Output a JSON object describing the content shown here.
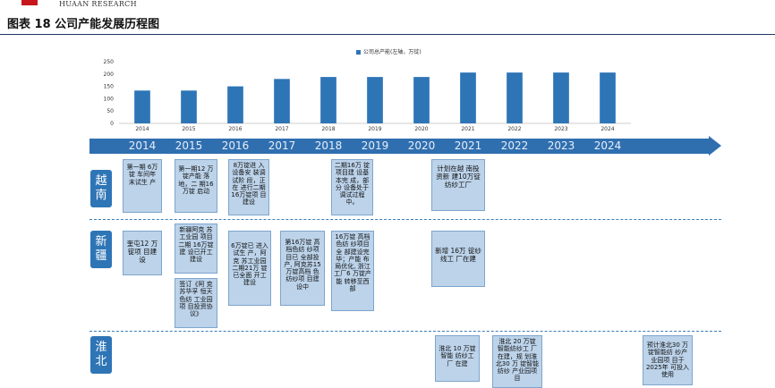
{
  "header": {
    "brand": "HUAAN RESEARCH",
    "figure_title": "图表 18 公司产能发展历程图"
  },
  "chart_data": {
    "type": "bar",
    "categories": [
      "2014",
      "2015",
      "2016",
      "2017",
      "2018",
      "2019",
      "2020",
      "2021",
      "2022",
      "2023",
      "2024"
    ],
    "series": [
      {
        "name": "公司总产能(左轴，万锭)",
        "values": [
          133,
          133,
          150,
          180,
          188,
          188,
          188,
          206,
          206,
          206,
          206
        ]
      }
    ],
    "ylim": [
      0,
      250
    ],
    "yticks": [
      "0",
      "50",
      "100",
      "150",
      "200",
      "250"
    ],
    "bar_color": "#2e75b6",
    "legend_position": "top-center",
    "title": "",
    "xlabel": "",
    "ylabel": ""
  },
  "timeline": {
    "years": [
      "2014",
      "2015",
      "2016",
      "2017",
      "2018",
      "2019",
      "2020",
      "2021",
      "2022",
      "2023",
      "2024"
    ],
    "color": "#2f6fb0"
  },
  "regions": [
    {
      "label": "越南"
    },
    {
      "label": "新疆"
    },
    {
      "label": "淮北"
    }
  ],
  "events": {
    "vn_2014": "第一期 6万锭 车间年 末试生 产",
    "vn_2015": "第一期12 万锭产能 落地，二 期16万锭 启动",
    "vn_2016": "8万锭进 入设备安 装调试阶 段，正在 进行二期 16万锭项 目建设",
    "vn_2018": "二期16万 锭项目建 设基本完 成，部分 设备处于 调试过程 中。",
    "vn_2020": "计划在越 南投资新 建10万锭 纺纱工厂",
    "xj_2014": "奎屯12 万锭项 目建设",
    "xj_2015a": "新疆阿克 苏工业园 项目二期 16万锭建 设已开工 建设",
    "xj_2015b": "签订《阿 克苏华孚 恒天色纺 工业园项 目投资协 议》",
    "xj_2016": "6万锭已 进入试生 产，阿克 苏工业园 二期21万 锭已全面 开工建设",
    "xj_2017": "第16万锭 高档色纺 纱项目已 全部投产, 阿克苏15 万锭高档 色纺纱项 目建设中",
    "xj_2018": "16万锭 高档色纺 纱项目全 部建设完 毕；产能 布局优化, 浙江工厂6 万锭产能 转移至西 部",
    "xj_2020": "新增 16万 锭纱线工 厂在建",
    "hb_2020": "淮北 10 万锭智能 纺纱工厂 在建",
    "hb_2021": "淮北 20 万锭 智能纺纱工 厂在建，规 划淮北30 万 锭智能纺纱 产业园项目",
    "hb_2024": "预计淮北30 万锭智能纺 纱产业园项 目于2025年 可投入使用"
  }
}
